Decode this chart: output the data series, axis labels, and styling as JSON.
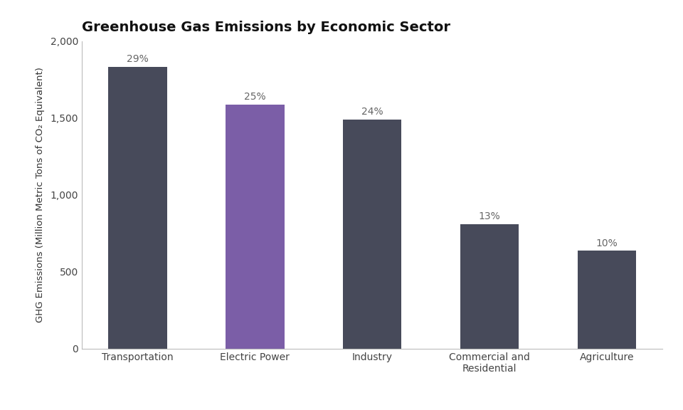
{
  "title": "Greenhouse Gas Emissions by Economic Sector",
  "categories": [
    "Transportation",
    "Electric Power",
    "Industry",
    "Commercial and\nResidential",
    "Agriculture"
  ],
  "values": [
    1832,
    1587,
    1491,
    810,
    635
  ],
  "percentages": [
    "29%",
    "25%",
    "24%",
    "13%",
    "10%"
  ],
  "bar_colors": [
    "#474a5a",
    "#7b5ea7",
    "#474a5a",
    "#474a5a",
    "#474a5a"
  ],
  "ylabel": "GHG Emissions (Million Metric Tons of CO₂ Equivalent)",
  "ylim": [
    0,
    2000
  ],
  "yticks": [
    0,
    500,
    1000,
    1500,
    2000
  ],
  "background_color": "#ffffff",
  "title_fontsize": 14,
  "label_fontsize": 9.5,
  "tick_fontsize": 10,
  "pct_fontsize": 10,
  "bar_width": 0.5
}
